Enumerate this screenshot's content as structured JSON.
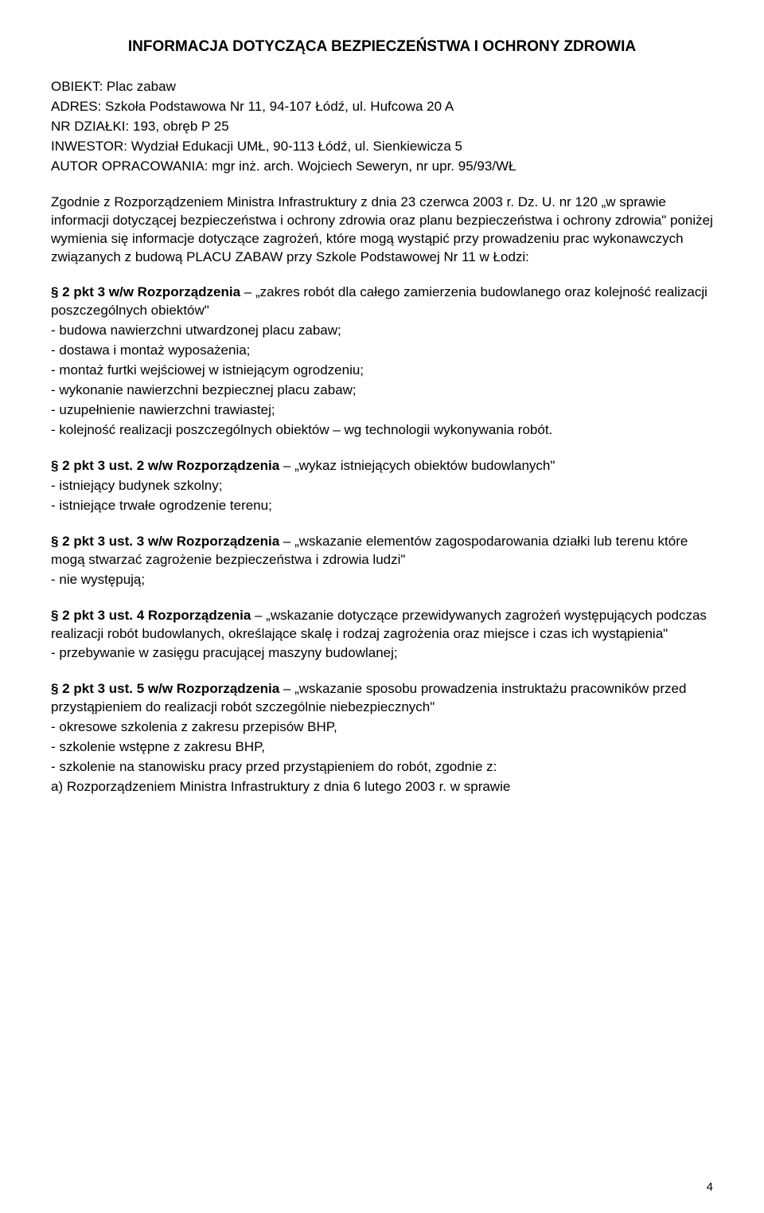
{
  "title": "INFORMACJA DOTYCZĄCA BEZPIECZEŃSTWA I OCHRONY ZDROWIA",
  "meta": {
    "obiekt_label": "OBIEKT:",
    "obiekt_value": "Plac zabaw",
    "adres_label": "ADRES:",
    "adres_value": "Szkoła Podstawowa Nr 11, 94-107 Łódź, ul. Hufcowa 20 A",
    "dzialki_label": "NR DZIAŁKI:",
    "dzialki_value": "193, obręb P 25",
    "inwestor_label": "INWESTOR:",
    "inwestor_value": "Wydział Edukacji UMŁ, 90-113 Łódź, ul. Sienkiewicza 5",
    "autor_label": "AUTOR OPRACOWANIA:",
    "autor_value": "mgr inż. arch. Wojciech Seweryn, nr upr. 95/93/WŁ"
  },
  "intro": {
    "p1": "Zgodnie z Rozporządzeniem Ministra Infrastruktury z dnia 23 czerwca 2003 r. Dz. U. nr 120 „w sprawie informacji dotyczącej bezpieczeństwa i ochrony zdrowia oraz planu bezpieczeństwa i ochrony zdrowia\" poniżej wymienia się informacje dotyczące zagrożeń, które mogą wystąpić przy prowadzeniu prac wykonawczych związanych z budową PLACU ZABAW przy Szkole Podstawowej Nr 11 w Łodzi:"
  },
  "sections": {
    "s1": {
      "heading": "§ 2 pkt 3 w/w Rozporządzenia",
      "rest": " – „zakres robót dla całego zamierzenia budowlanego oraz kolejność realizacji poszczególnych obiektów\"",
      "items": [
        "- budowa nawierzchni utwardzonej placu zabaw;",
        "- dostawa i montaż wyposażenia;",
        "- montaż furtki wejściowej w istniejącym ogrodzeniu;",
        "- wykonanie nawierzchni bezpiecznej placu zabaw;",
        "- uzupełnienie nawierzchni trawiastej;",
        "- kolejność realizacji poszczególnych obiektów – wg technologii wykonywania robót."
      ]
    },
    "s2": {
      "heading": "§ 2 pkt 3 ust. 2 w/w Rozporządzenia",
      "rest": " – „wykaz istniejących obiektów budowlanych\"",
      "items": [
        "- istniejący budynek szkolny;",
        "- istniejące trwałe ogrodzenie terenu;"
      ]
    },
    "s3": {
      "heading": "§ 2 pkt 3 ust. 3 w/w Rozporządzenia",
      "rest": " – „wskazanie elementów zagospodarowania działki lub terenu które mogą stwarzać zagrożenie bezpieczeństwa i zdrowia ludzi\"",
      "items": [
        "- nie występują;"
      ]
    },
    "s4": {
      "heading": "§ 2 pkt 3 ust. 4 Rozporządzenia",
      "rest": " – „wskazanie dotyczące przewidywanych zagrożeń występujących podczas realizacji robót budowlanych, określające skalę i rodzaj zagrożenia oraz miejsce i czas ich wystąpienia\"",
      "items": [
        "- przebywanie w zasięgu pracującej maszyny budowlanej;"
      ]
    },
    "s5": {
      "heading": "§ 2 pkt 3 ust. 5 w/w Rozporządzenia",
      "rest": " – „wskazanie sposobu prowadzenia instruktażu pracowników przed przystąpieniem do realizacji robót szczególnie niebezpiecznych\"",
      "items": [
        "- okresowe szkolenia z zakresu przepisów BHP,",
        "- szkolenie wstępne z zakresu BHP,",
        "- szkolenie na stanowisku pracy przed przystąpieniem do robót, zgodnie z:",
        "a) Rozporządzeniem Ministra Infrastruktury z dnia 6 lutego 2003 r. w sprawie"
      ]
    }
  },
  "page_number": "4"
}
